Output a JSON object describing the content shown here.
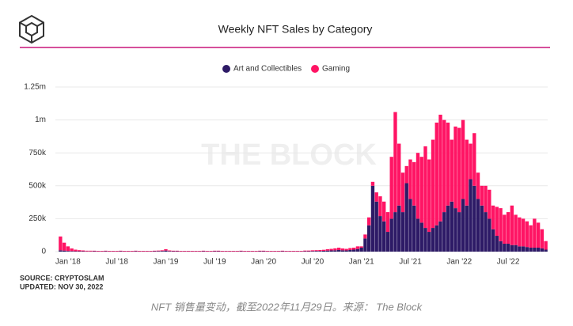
{
  "chart_data": {
    "type": "bar",
    "stacked": true,
    "title": "Weekly NFT Sales by Category",
    "watermark": "THE BLOCK",
    "source": "SOURCE: CRYPTOSLAM",
    "updated": "UPDATED: NOV 30, 2022",
    "caption": "NFT 销售量变动，截至2022年11月29日。来源： The Block",
    "grid": true,
    "ylim": [
      0,
      1250000
    ],
    "yticks": [
      0,
      {
        "value": 250000,
        "label": "250k"
      },
      {
        "value": 500000,
        "label": "500k"
      },
      {
        "value": 750000,
        "label": "750k"
      },
      {
        "value": 1000000,
        "label": "1m"
      },
      {
        "value": 1250000,
        "label": "1.25m"
      }
    ],
    "categories": [
      null,
      null,
      "Jan '18",
      null,
      null,
      null,
      null,
      null,
      null,
      null,
      null,
      null,
      null,
      null,
      null,
      "Jul '18",
      null,
      null,
      null,
      null,
      null,
      null,
      null,
      null,
      null,
      null,
      null,
      null,
      "Jan '19",
      null,
      null,
      null,
      null,
      null,
      null,
      null,
      null,
      null,
      null,
      null,
      null,
      "Jul '19",
      null,
      null,
      null,
      null,
      null,
      null,
      null,
      null,
      null,
      null,
      null,
      null,
      "Jan '20",
      null,
      null,
      null,
      null,
      null,
      null,
      null,
      null,
      null,
      null,
      null,
      null,
      "Jul '20",
      null,
      null,
      null,
      null,
      null,
      null,
      null,
      null,
      null,
      null,
      null,
      null,
      "Jan '21",
      null,
      null,
      null,
      null,
      null,
      null,
      null,
      null,
      null,
      null,
      null,
      null,
      "Jul '21",
      null,
      null,
      null,
      null,
      null,
      null,
      null,
      null,
      null,
      null,
      null,
      null,
      "Jan '22",
      null,
      null,
      null,
      null,
      null,
      null,
      null,
      null,
      null,
      null,
      null,
      null,
      "Jul '22",
      null,
      null,
      null,
      null,
      null,
      null,
      null,
      null,
      null,
      null
    ],
    "series": [
      {
        "name": "Art and Collectibles",
        "color": "#2d1a66",
        "values": [
          10000,
          8000,
          5000,
          4000,
          3000,
          3000,
          3000,
          2000,
          2000,
          3000,
          2000,
          2000,
          3000,
          2000,
          2000,
          2000,
          3000,
          2000,
          2000,
          2000,
          3000,
          2000,
          2000,
          2000,
          2000,
          3000,
          4000,
          5000,
          8000,
          4000,
          3000,
          3000,
          2000,
          2000,
          2000,
          2000,
          2000,
          2000,
          3000,
          2000,
          2000,
          3000,
          3000,
          2000,
          2000,
          2000,
          2000,
          2000,
          3000,
          2000,
          2000,
          2000,
          2000,
          3000,
          3000,
          2000,
          2000,
          2000,
          2000,
          3000,
          2000,
          2000,
          2000,
          2000,
          2000,
          3000,
          3000,
          4000,
          5000,
          5000,
          6000,
          8000,
          9000,
          10000,
          12000,
          10000,
          9000,
          12000,
          15000,
          20000,
          30000,
          100000,
          200000,
          500000,
          380000,
          270000,
          230000,
          150000,
          250000,
          300000,
          350000,
          300000,
          520000,
          400000,
          350000,
          250000,
          220000,
          180000,
          150000,
          180000,
          200000,
          230000,
          300000,
          350000,
          380000,
          330000,
          300000,
          400000,
          350000,
          550000,
          500000,
          400000,
          350000,
          300000,
          250000,
          170000,
          120000,
          80000,
          60000,
          60000,
          50000,
          50000,
          40000,
          40000,
          35000,
          30000,
          30000,
          30000,
          25000,
          15000
        ]
      },
      {
        "name": "Gaming",
        "color": "#ff1464",
        "values": [
          105000,
          60000,
          35000,
          20000,
          12000,
          8000,
          6000,
          5000,
          5000,
          4000,
          4000,
          4000,
          4000,
          4000,
          4000,
          4000,
          4000,
          4000,
          4000,
          4000,
          4000,
          4000,
          4000,
          4000,
          4000,
          4000,
          4000,
          5000,
          10000,
          5000,
          4000,
          4000,
          4000,
          4000,
          4000,
          4000,
          4000,
          4000,
          4000,
          4000,
          4000,
          4000,
          4000,
          4000,
          4000,
          4000,
          4000,
          4000,
          4000,
          4000,
          4000,
          4000,
          4000,
          4000,
          4000,
          4000,
          4000,
          4000,
          4000,
          4000,
          4000,
          4000,
          4000,
          4000,
          4000,
          5000,
          5000,
          6000,
          6000,
          7000,
          8000,
          10000,
          12000,
          15000,
          18000,
          14000,
          12000,
          15000,
          15000,
          20000,
          10000,
          30000,
          60000,
          30000,
          70000,
          150000,
          150000,
          150000,
          470000,
          760000,
          470000,
          300000,
          130000,
          300000,
          330000,
          500000,
          500000,
          620000,
          550000,
          670000,
          780000,
          810000,
          700000,
          630000,
          470000,
          620000,
          640000,
          600000,
          500000,
          270000,
          400000,
          200000,
          150000,
          200000,
          220000,
          180000,
          220000,
          250000,
          220000,
          240000,
          300000,
          230000,
          220000,
          210000,
          195000,
          170000,
          220000,
          190000,
          145000,
          65000
        ]
      }
    ]
  }
}
